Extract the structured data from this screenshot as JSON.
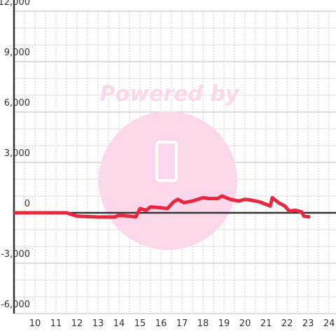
{
  "chart_data": {
    "type": "line",
    "watermark": "Powered by",
    "x": [
      9,
      11.5,
      12,
      13,
      13.8,
      14,
      14.5,
      14.8,
      15,
      15.3,
      15.5,
      16,
      16.3,
      16.6,
      16.8,
      17.1,
      17.5,
      18,
      18.3,
      18.7,
      18.9,
      19.3,
      19.7,
      20,
      20.3,
      20.7,
      21,
      21.2,
      21.3,
      21.6,
      21.9,
      22.1,
      22.4,
      22.7,
      22.8,
      23.1
    ],
    "series": [
      {
        "color": "#e8283f",
        "values": [
          0,
          0,
          -200,
          -250,
          -250,
          -150,
          -200,
          -250,
          250,
          150,
          350,
          300,
          250,
          650,
          800,
          600,
          700,
          900,
          850,
          850,
          1000,
          800,
          700,
          800,
          750,
          650,
          500,
          400,
          900,
          600,
          400,
          100,
          150,
          50,
          -200,
          -250
        ]
      }
    ],
    "xlim": [
      9,
      24.33
    ],
    "xticks": [
      10,
      11,
      12,
      13,
      14,
      15,
      16,
      17,
      18,
      19,
      20,
      21,
      22,
      23,
      24
    ],
    "ylim": [
      -6000,
      12000
    ],
    "yticks": [
      {
        "value": -6000,
        "label": "-6,000"
      },
      {
        "value": -3000,
        "label": "-3,000"
      },
      0,
      {
        "value": 3000,
        "label": "3,000"
      },
      {
        "value": 6000,
        "label": "6,000"
      },
      {
        "value": 9000,
        "label": "9,000"
      },
      {
        "value": 12000,
        "label": "12,000"
      }
    ],
    "grid": true
  }
}
